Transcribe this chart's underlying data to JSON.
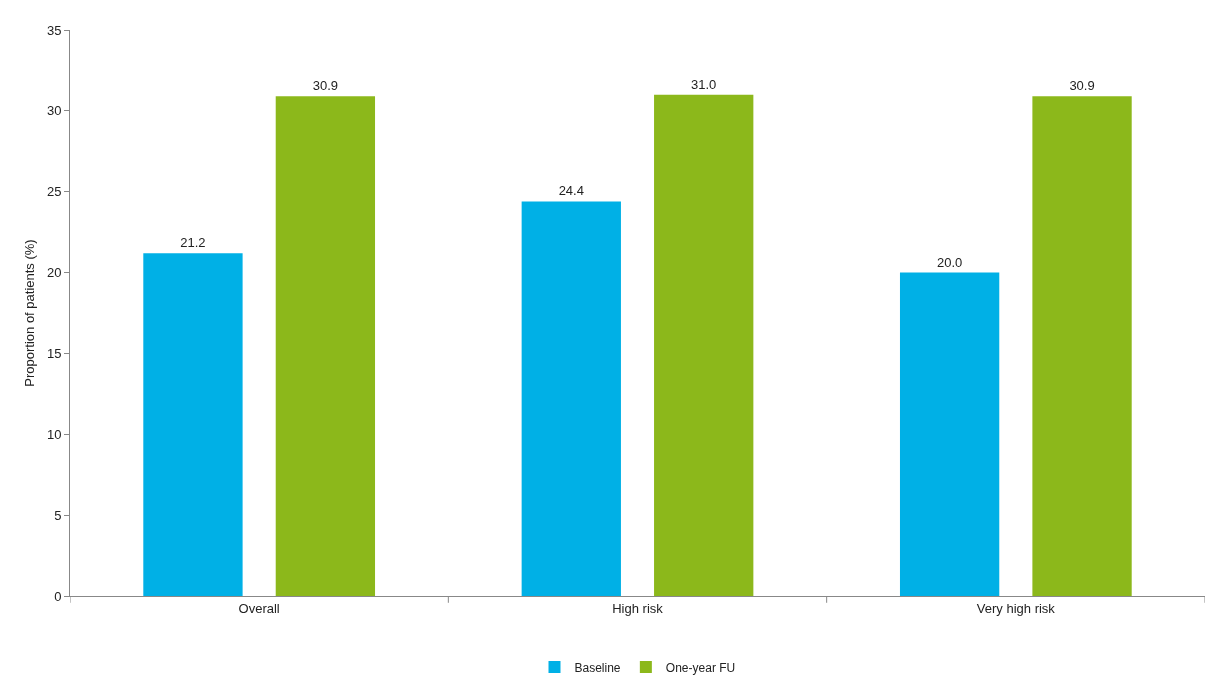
{
  "chart_data": {
    "type": "bar",
    "ylabel": "Proportion of patients (%)",
    "categories": [
      "Overall",
      "High risk",
      "Very high risk"
    ],
    "series": [
      {
        "name": "Baseline",
        "color": "#00b0e6",
        "values": [
          21.2,
          24.4,
          20.0
        ],
        "value_labels": [
          "21.2",
          "24.4",
          "20.0"
        ]
      },
      {
        "name": "One-year FU",
        "color": "#8cb81b",
        "values": [
          30.9,
          31.0,
          30.9
        ],
        "value_labels": [
          "30.9",
          "31.0",
          "30.9"
        ]
      }
    ],
    "ylim": [
      0,
      35
    ],
    "yticks": [
      0,
      5,
      10,
      15,
      20,
      25,
      30,
      35
    ],
    "grid": false,
    "legend": "bottom"
  }
}
